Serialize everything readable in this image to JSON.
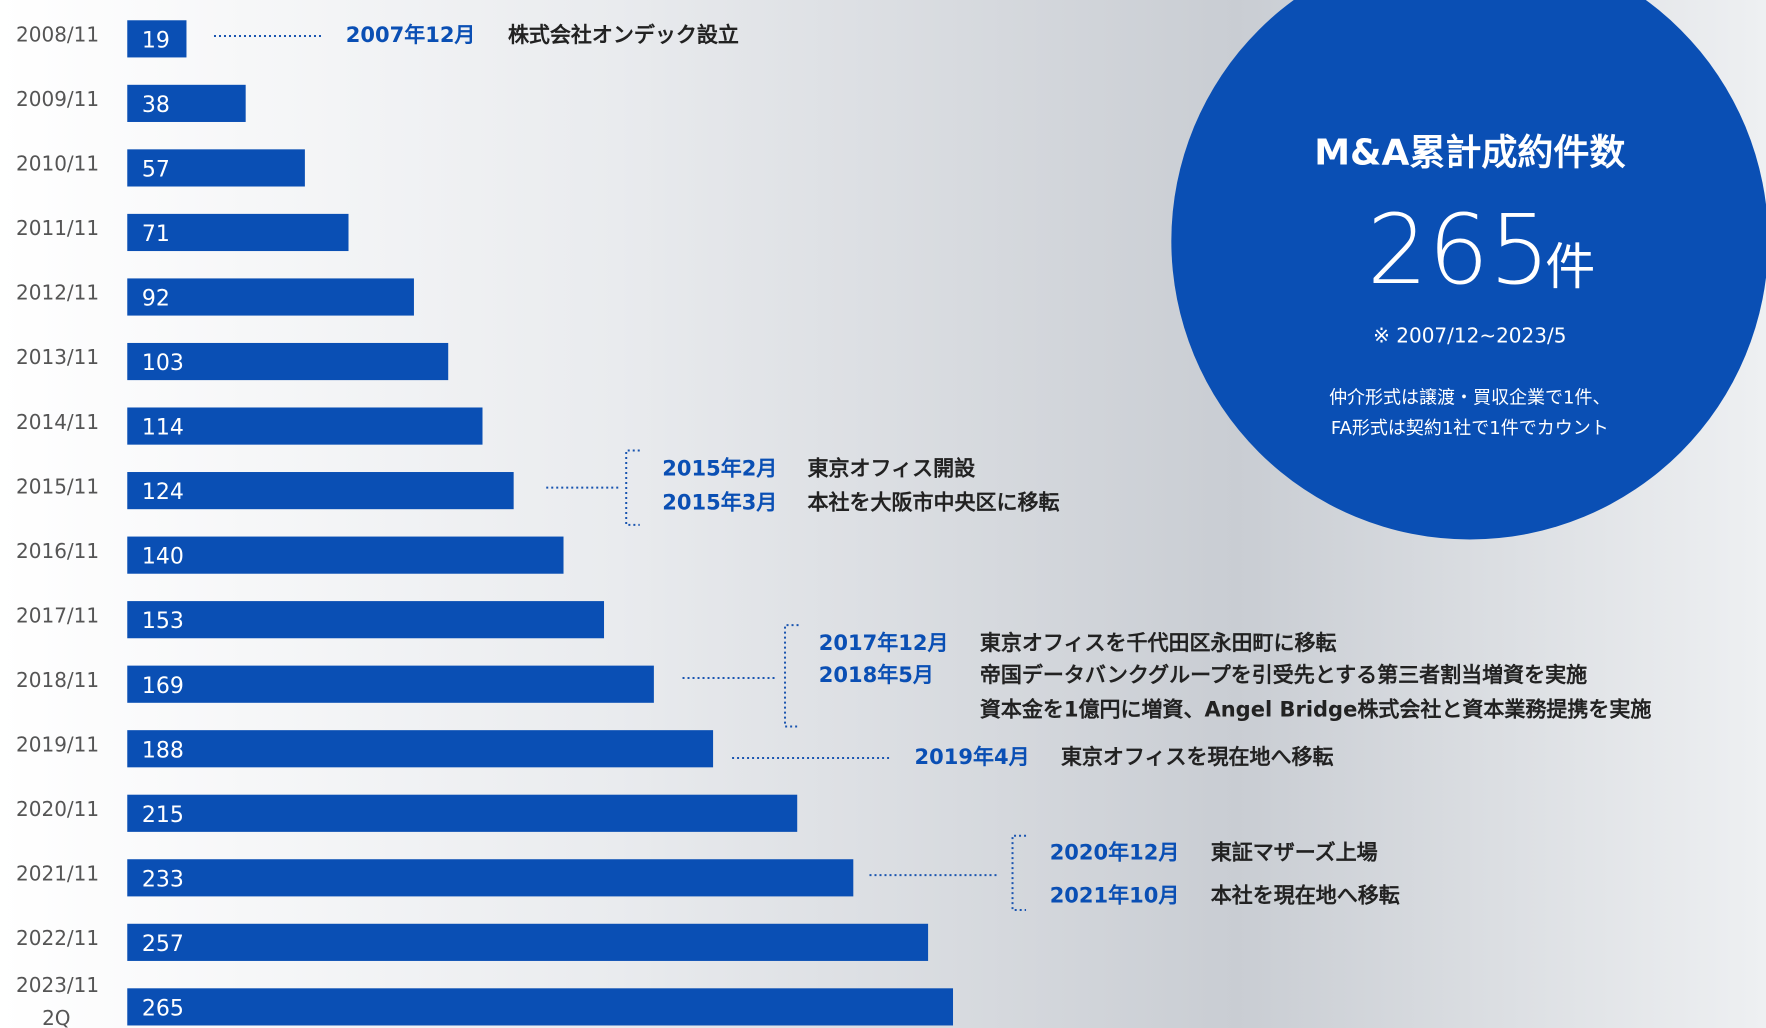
{
  "chart_data": {
    "type": "bar",
    "categories": [
      "2008/11",
      "2009/11",
      "2010/11",
      "2011/11",
      "2012/11",
      "2013/11",
      "2014/11",
      "2015/11",
      "2016/11",
      "2017/11",
      "2018/11",
      "2019/11",
      "2020/11",
      "2021/11",
      "2022/11",
      "2023/11"
    ],
    "period_note": "2Q",
    "values": [
      19,
      38,
      57,
      71,
      92,
      103,
      114,
      124,
      140,
      153,
      169,
      188,
      215,
      233,
      257,
      265
    ],
    "color": "#0a4fb4",
    "xlim": [
      0,
      300
    ]
  },
  "milestones": [
    {
      "items": [
        {
          "date": "2007年12月",
          "text": [
            "株式会社オンデック設立"
          ]
        }
      ]
    },
    {
      "items": [
        {
          "date": "2015年2月",
          "text": [
            "東京オフィス開設"
          ]
        },
        {
          "date": "2015年3月",
          "text": [
            "本社を大阪市中央区に移転"
          ]
        }
      ]
    },
    {
      "items": [
        {
          "date": "2017年12月",
          "text": [
            "東京オフィスを千代田区永田町に移転"
          ]
        },
        {
          "date": "2018年5月",
          "text": [
            "帝国データバンクグループを引受先とする第三者割当増資を実施",
            "資本金を1億円に増資、Angel Bridge株式会社と資本業務提携を実施"
          ]
        }
      ]
    },
    {
      "items": [
        {
          "date": "2019年4月",
          "text": [
            "東京オフィスを現在地へ移転"
          ]
        }
      ]
    },
    {
      "items": [
        {
          "date": "2020年12月",
          "text": [
            "東証マザーズ上場"
          ]
        },
        {
          "date": "2021年10月",
          "text": [
            "本社を現在地へ移転"
          ]
        }
      ]
    }
  ],
  "summary": {
    "title": "M&A累計成約件数",
    "total": "265",
    "unit": "件",
    "period": "※ 2007/12~2023/5",
    "notes": [
      "仲介形式は譲渡・買収企業で1件、",
      "FA形式は契約1社で1件でカウント"
    ]
  }
}
